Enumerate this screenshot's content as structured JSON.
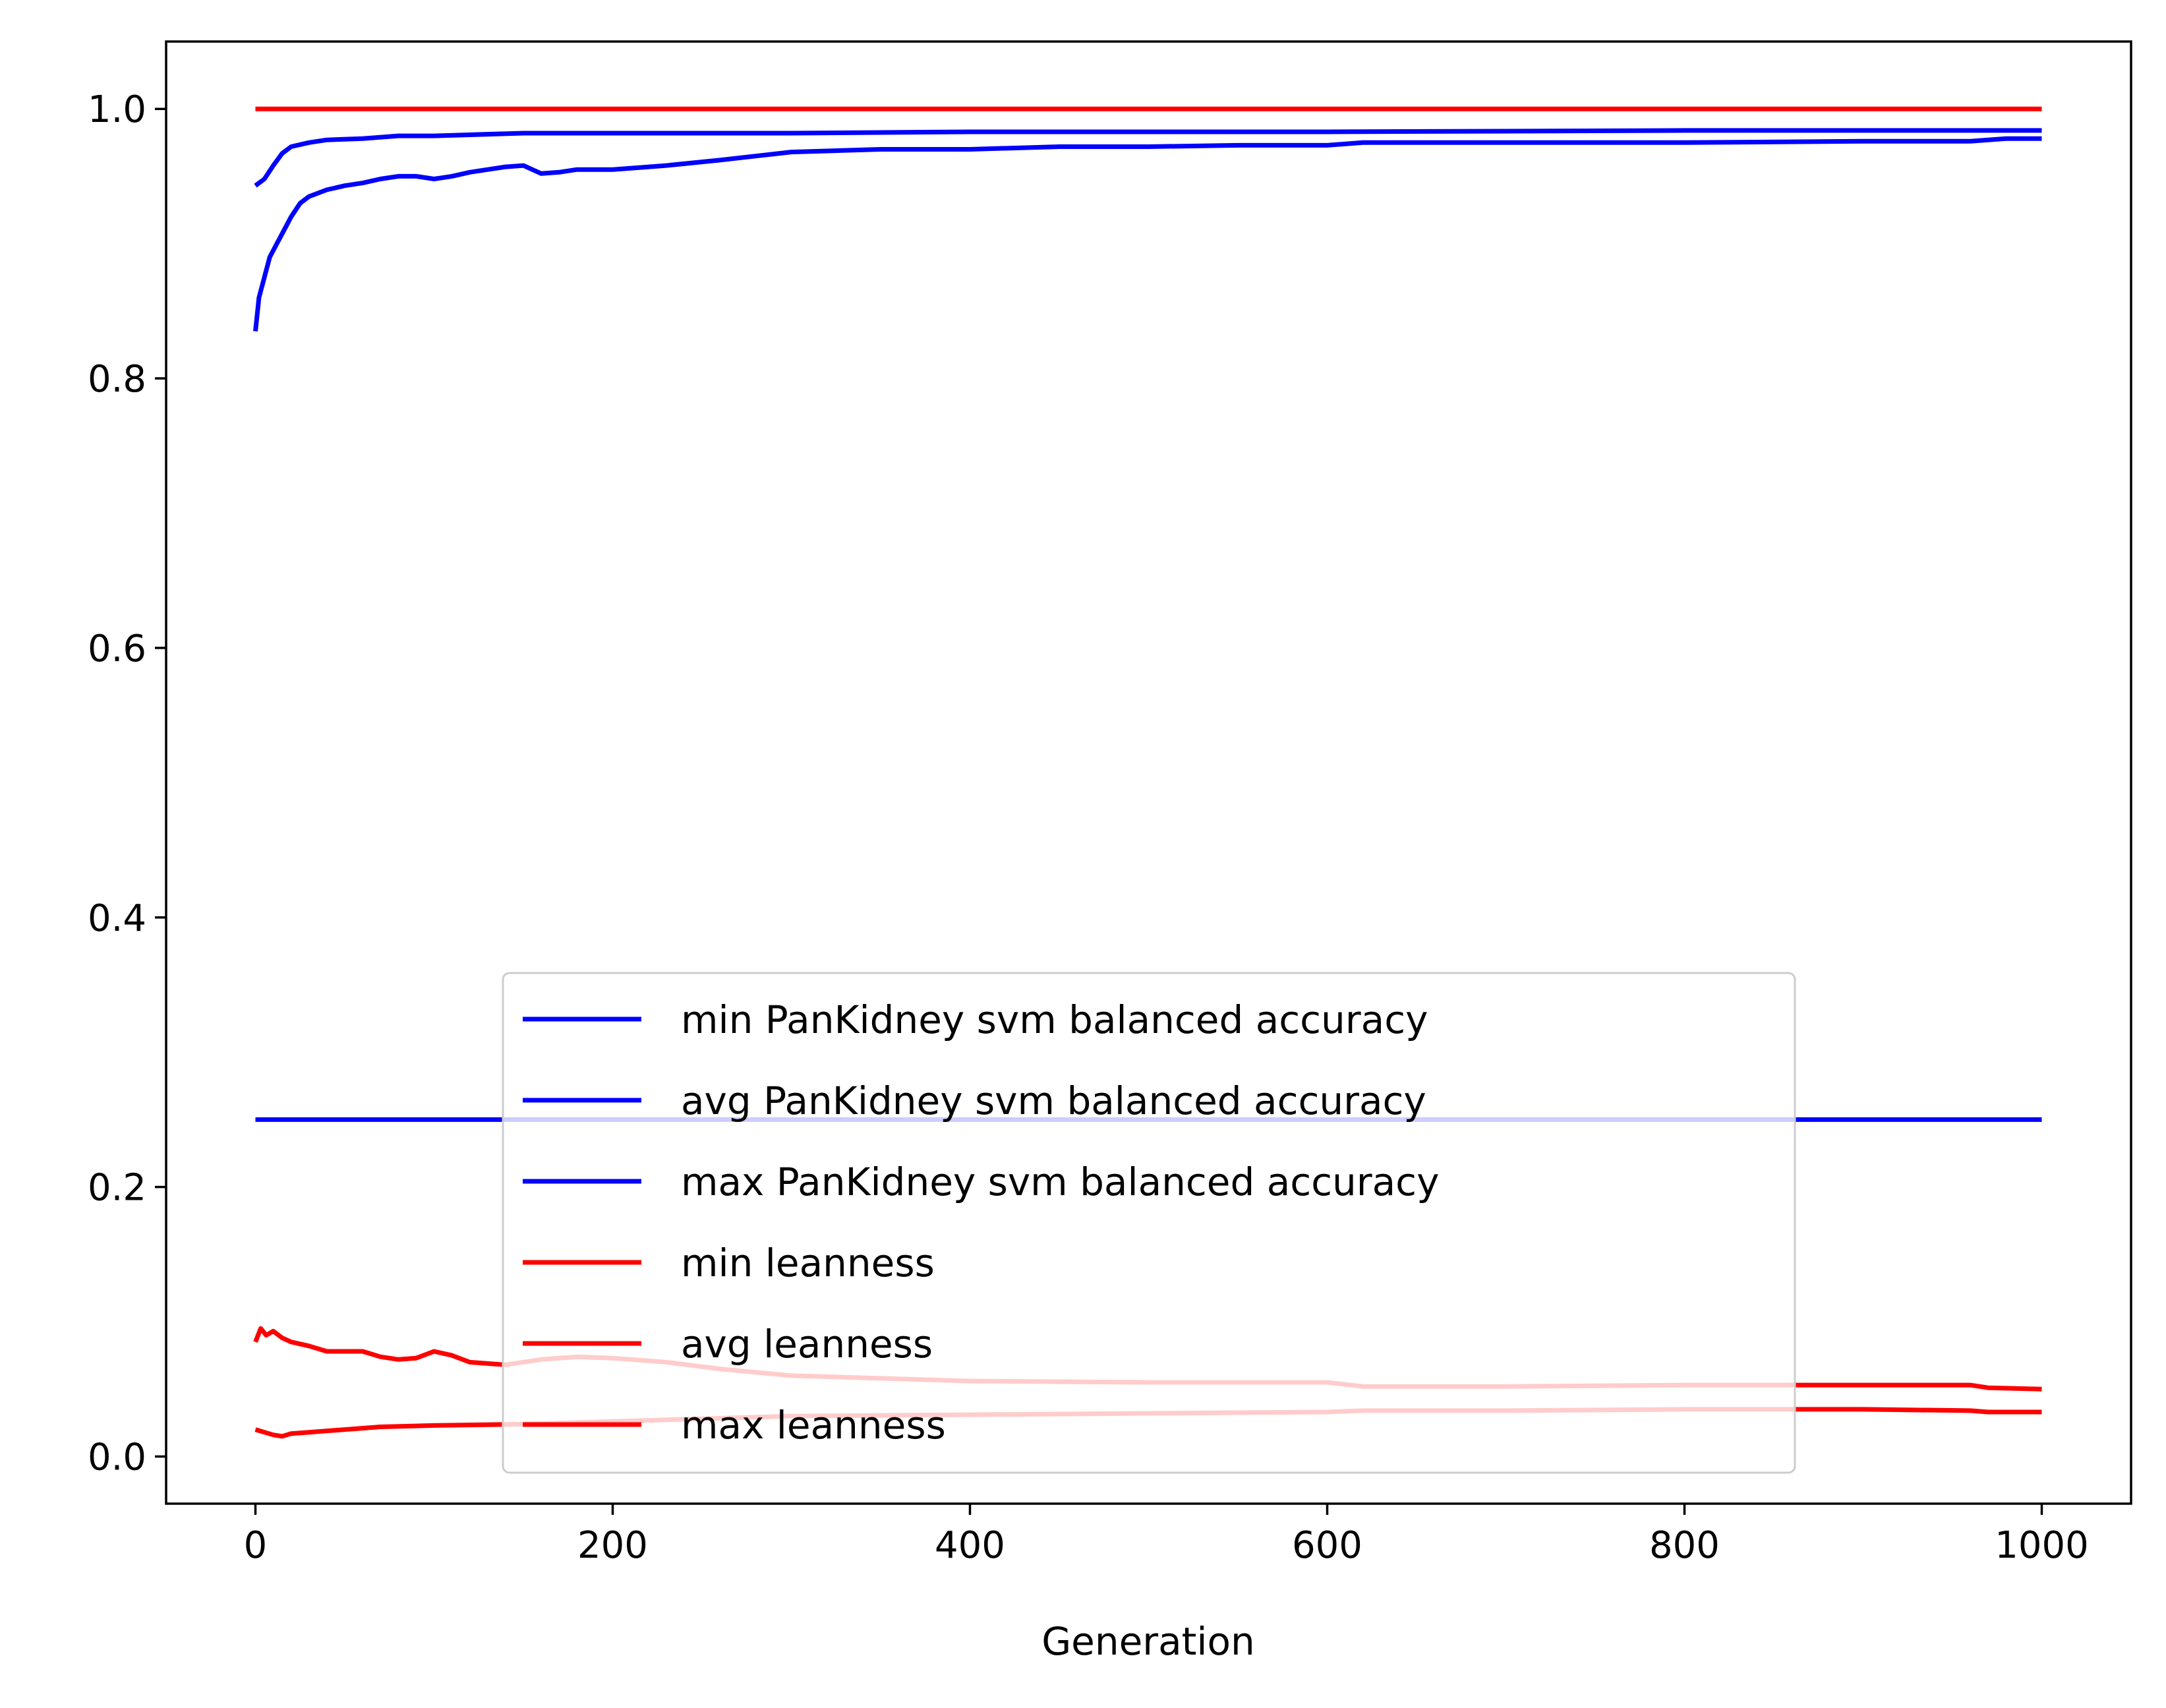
{
  "chart_data": {
    "type": "line",
    "title": "",
    "xlabel": "Generation",
    "ylabel": "",
    "xlim": [
      -50,
      1050
    ],
    "ylim": [
      -0.035,
      1.05
    ],
    "xticks": [
      0,
      200,
      400,
      600,
      800,
      1000
    ],
    "xtick_labels": [
      "0",
      "200",
      "400",
      "600",
      "800",
      "1000"
    ],
    "yticks": [
      0.0,
      0.2,
      0.4,
      0.6,
      0.8,
      1.0
    ],
    "ytick_labels": [
      "0.0",
      "0.2",
      "0.4",
      "0.6",
      "0.8",
      "1.0"
    ],
    "grid": false,
    "legend_position": "lower center",
    "colors": {
      "accuracy": "#0000ff",
      "leanness": "#ff0000"
    },
    "series": [
      {
        "name": "min PanKidney svm balanced accuracy",
        "color": "#0000ff",
        "x": [
          0,
          1000
        ],
        "y": [
          0.25,
          0.25
        ]
      },
      {
        "name": "avg PanKidney svm balanced accuracy",
        "color": "#0000ff",
        "x": [
          0,
          2,
          5,
          8,
          12,
          16,
          20,
          25,
          30,
          40,
          50,
          60,
          70,
          80,
          90,
          100,
          110,
          120,
          130,
          140,
          150,
          160,
          170,
          180,
          200,
          230,
          260,
          300,
          350,
          400,
          450,
          500,
          550,
          600,
          620,
          700,
          800,
          900,
          960,
          980,
          1000
        ],
        "y": [
          0.835,
          0.86,
          0.875,
          0.89,
          0.9,
          0.91,
          0.92,
          0.93,
          0.935,
          0.94,
          0.943,
          0.945,
          0.948,
          0.95,
          0.95,
          0.948,
          0.95,
          0.953,
          0.955,
          0.957,
          0.958,
          0.952,
          0.953,
          0.955,
          0.955,
          0.958,
          0.962,
          0.968,
          0.97,
          0.97,
          0.972,
          0.972,
          0.973,
          0.973,
          0.975,
          0.975,
          0.975,
          0.976,
          0.976,
          0.978,
          0.978
        ]
      },
      {
        "name": "max PanKidney svm balanced accuracy",
        "color": "#0000ff",
        "x": [
          0,
          5,
          10,
          15,
          20,
          30,
          40,
          60,
          80,
          100,
          150,
          200,
          300,
          400,
          600,
          800,
          1000
        ],
        "y": [
          0.943,
          0.948,
          0.958,
          0.967,
          0.972,
          0.975,
          0.977,
          0.978,
          0.98,
          0.98,
          0.982,
          0.982,
          0.982,
          0.983,
          0.983,
          0.984,
          0.984
        ]
      },
      {
        "name": "min leanness",
        "color": "#ff0000",
        "x": [
          0,
          5,
          10,
          15,
          20,
          30,
          50,
          70,
          100,
          150,
          200,
          250,
          300,
          400,
          500,
          600,
          620,
          700,
          800,
          900,
          960,
          970,
          1000
        ],
        "y": [
          0.02,
          0.018,
          0.016,
          0.015,
          0.017,
          0.018,
          0.02,
          0.022,
          0.023,
          0.024,
          0.026,
          0.028,
          0.03,
          0.031,
          0.032,
          0.033,
          0.034,
          0.034,
          0.035,
          0.035,
          0.034,
          0.033,
          0.033
        ]
      },
      {
        "name": "avg leanness",
        "color": "#ff0000",
        "x": [
          0,
          3,
          6,
          10,
          15,
          20,
          30,
          40,
          50,
          60,
          70,
          80,
          90,
          100,
          110,
          120,
          140,
          160,
          180,
          200,
          230,
          260,
          300,
          350,
          400,
          500,
          600,
          620,
          700,
          800,
          900,
          960,
          970,
          1000
        ],
        "y": [
          0.085,
          0.095,
          0.09,
          0.093,
          0.088,
          0.085,
          0.082,
          0.078,
          0.078,
          0.078,
          0.074,
          0.072,
          0.073,
          0.078,
          0.075,
          0.07,
          0.068,
          0.072,
          0.074,
          0.073,
          0.07,
          0.065,
          0.06,
          0.058,
          0.056,
          0.055,
          0.055,
          0.052,
          0.052,
          0.053,
          0.053,
          0.053,
          0.051,
          0.05
        ]
      },
      {
        "name": "max leanness",
        "color": "#ff0000",
        "x": [
          0,
          1000
        ],
        "y": [
          1.0,
          1.0
        ]
      }
    ]
  }
}
